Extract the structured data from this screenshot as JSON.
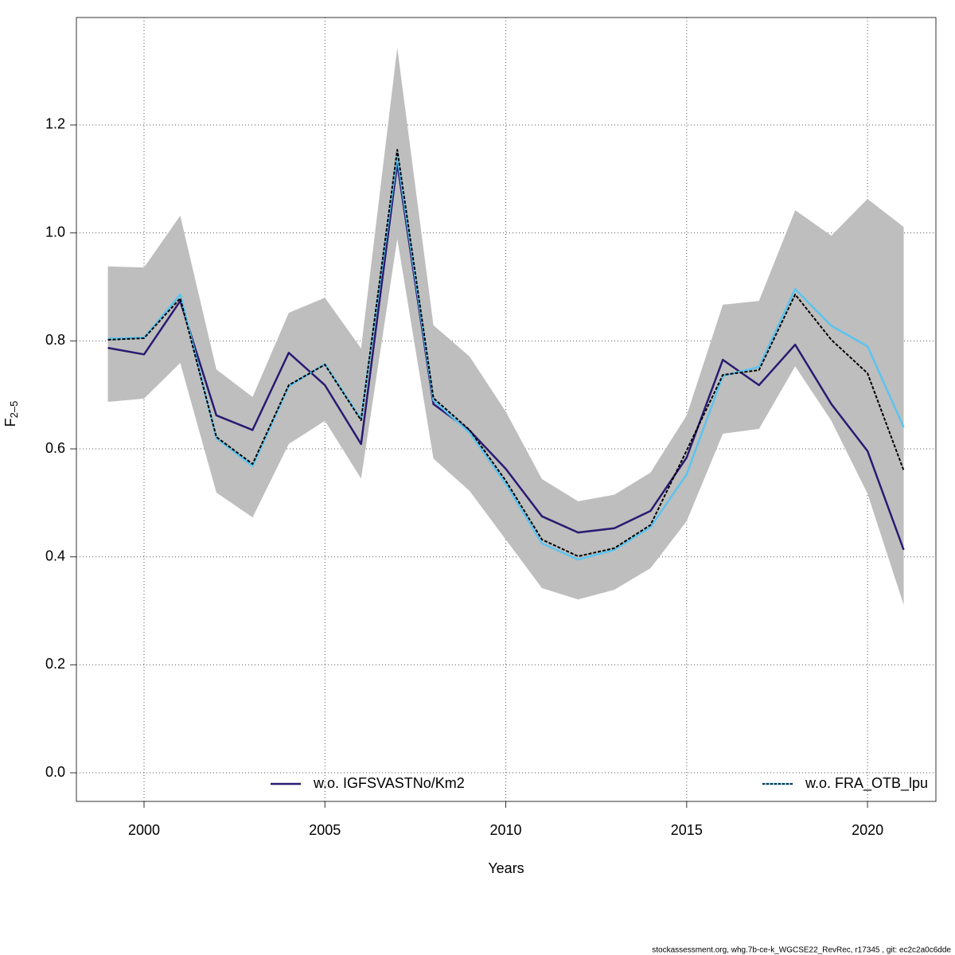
{
  "chart_data": {
    "type": "line",
    "x_label": "Years",
    "y_label": "F",
    "y_label_subscript": "2–5",
    "footer": "stockassessment.org, whg.7b-ce-k_WGCSE22_RevRec, r17345 , git: ec2c2a0c6dde",
    "x": [
      1999,
      2000,
      2001,
      2002,
      2003,
      2004,
      2005,
      2006,
      2007,
      2008,
      2009,
      2010,
      2011,
      2012,
      2013,
      2014,
      2015,
      2016,
      2017,
      2018,
      2019,
      2020,
      2021
    ],
    "estimate": {
      "color": "#000000",
      "values": [
        0.802,
        0.805,
        0.879,
        0.622,
        0.572,
        0.718,
        0.756,
        0.653,
        1.154,
        0.694,
        0.635,
        0.541,
        0.432,
        0.401,
        0.416,
        0.459,
        0.597,
        0.737,
        0.746,
        0.886,
        0.802,
        0.74,
        0.56
      ],
      "band_color": "#bebebe",
      "lower": [
        0.687,
        0.693,
        0.759,
        0.519,
        0.473,
        0.609,
        0.652,
        0.545,
        0.989,
        0.582,
        0.522,
        0.432,
        0.342,
        0.321,
        0.339,
        0.379,
        0.466,
        0.628,
        0.637,
        0.753,
        0.652,
        0.517,
        0.311
      ],
      "upper": [
        0.938,
        0.936,
        1.032,
        0.747,
        0.696,
        0.852,
        0.88,
        0.786,
        1.343,
        0.829,
        0.771,
        0.669,
        0.544,
        0.503,
        0.515,
        0.556,
        0.662,
        0.867,
        0.874,
        1.042,
        0.995,
        1.063,
        1.011
      ]
    },
    "series": [
      {
        "name": "w.o. IGFSVASTNo/Km2",
        "color": "#2a1a72",
        "values": [
          0.787,
          0.775,
          0.874,
          0.662,
          0.635,
          0.778,
          0.718,
          0.609,
          1.129,
          0.683,
          0.634,
          0.563,
          0.475,
          0.445,
          0.453,
          0.485,
          0.584,
          0.765,
          0.718,
          0.793,
          0.683,
          0.596,
          0.413
        ]
      },
      {
        "name": "w.o. FRA_OTB_lpu",
        "color": "#5bc4ef",
        "values": [
          0.804,
          0.806,
          0.886,
          0.62,
          0.568,
          0.716,
          0.757,
          0.655,
          1.143,
          0.69,
          0.63,
          0.535,
          0.425,
          0.395,
          0.413,
          0.455,
          0.553,
          0.735,
          0.752,
          0.896,
          0.828,
          0.79,
          0.64
        ]
      }
    ],
    "xlim": [
      1998.13,
      2021.89
    ],
    "xticks": [
      2000,
      2005,
      2010,
      2015,
      2020
    ],
    "ylim": [
      -0.053,
      1.399
    ],
    "yticks": [
      {
        "value": 0,
        "label": "0.0"
      },
      0.2,
      0.4,
      0.6,
      0.8,
      {
        "value": 1,
        "label": "1.0"
      },
      1.2
    ],
    "grid": true
  }
}
